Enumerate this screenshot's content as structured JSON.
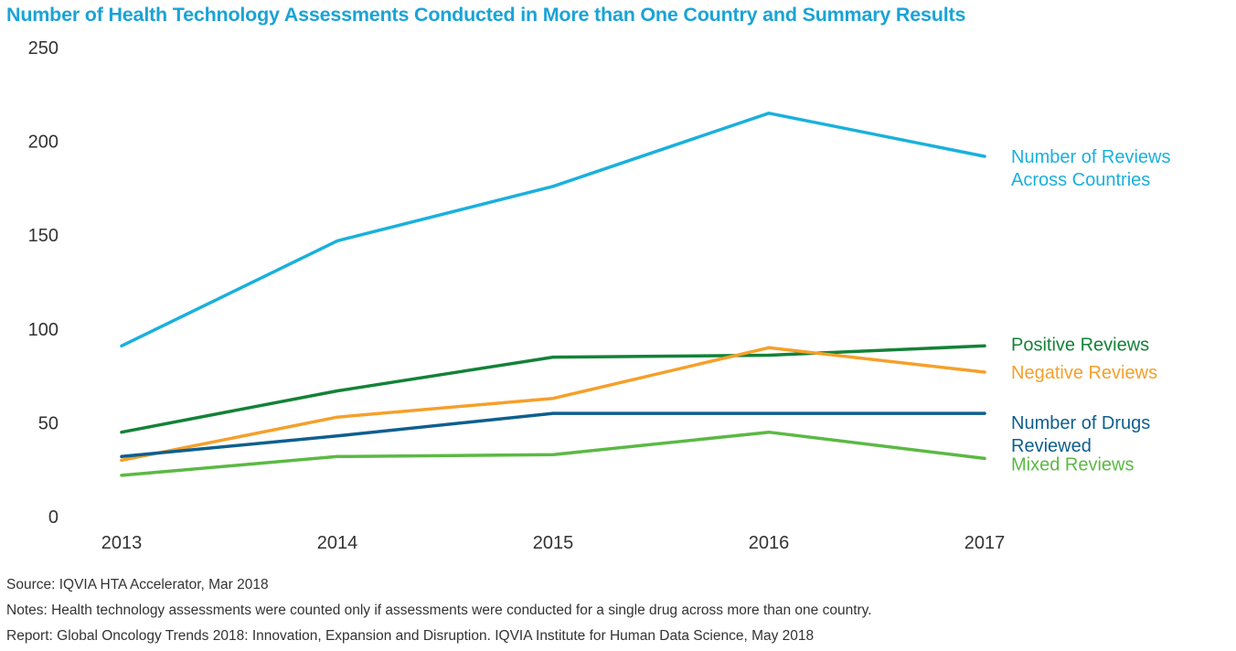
{
  "chart_data": {
    "type": "line",
    "title": "Number of Health Technology Assessments Conducted in More than One Country and Summary Results",
    "x": [
      "2013",
      "2014",
      "2015",
      "2016",
      "2017"
    ],
    "ylim": [
      0,
      250
    ],
    "yticks": [
      0,
      50,
      100,
      150,
      200,
      250
    ],
    "grid": false,
    "legend": "right-end-labels",
    "series": [
      {
        "name": "Number of Reviews Across Countries",
        "label_lines": [
          "Number of Reviews",
          "Across Countries"
        ],
        "color": "#1ab0dd",
        "values": [
          91,
          147,
          176,
          215,
          192
        ]
      },
      {
        "name": "Positive Reviews",
        "label_lines": [
          "Positive Reviews"
        ],
        "color": "#138237",
        "values": [
          45,
          67,
          85,
          86,
          91
        ]
      },
      {
        "name": "Negative Reviews",
        "label_lines": [
          "Negative Reviews"
        ],
        "color": "#f5a02a",
        "values": [
          30,
          53,
          63,
          90,
          77
        ]
      },
      {
        "name": "Number of Drugs Reviewed",
        "label_lines": [
          "Number of  Drugs",
          "Reviewed"
        ],
        "color": "#0e5f8e",
        "values": [
          32,
          43,
          55,
          55,
          55
        ]
      },
      {
        "name": "Mixed Reviews",
        "label_lines": [
          "Mixed Reviews"
        ],
        "color": "#5bb944",
        "values": [
          22,
          32,
          33,
          45,
          31
        ]
      }
    ]
  },
  "footer": {
    "source": "Source: IQVIA HTA Accelerator, Mar 2018",
    "notes": "Notes: Health technology assessments were counted only if assessments were conducted for a single drug across more than one country.",
    "report": "Report: Global Oncology Trends 2018: Innovation, Expansion and Disruption. IQVIA Institute for Human Data Science, May 2018"
  }
}
